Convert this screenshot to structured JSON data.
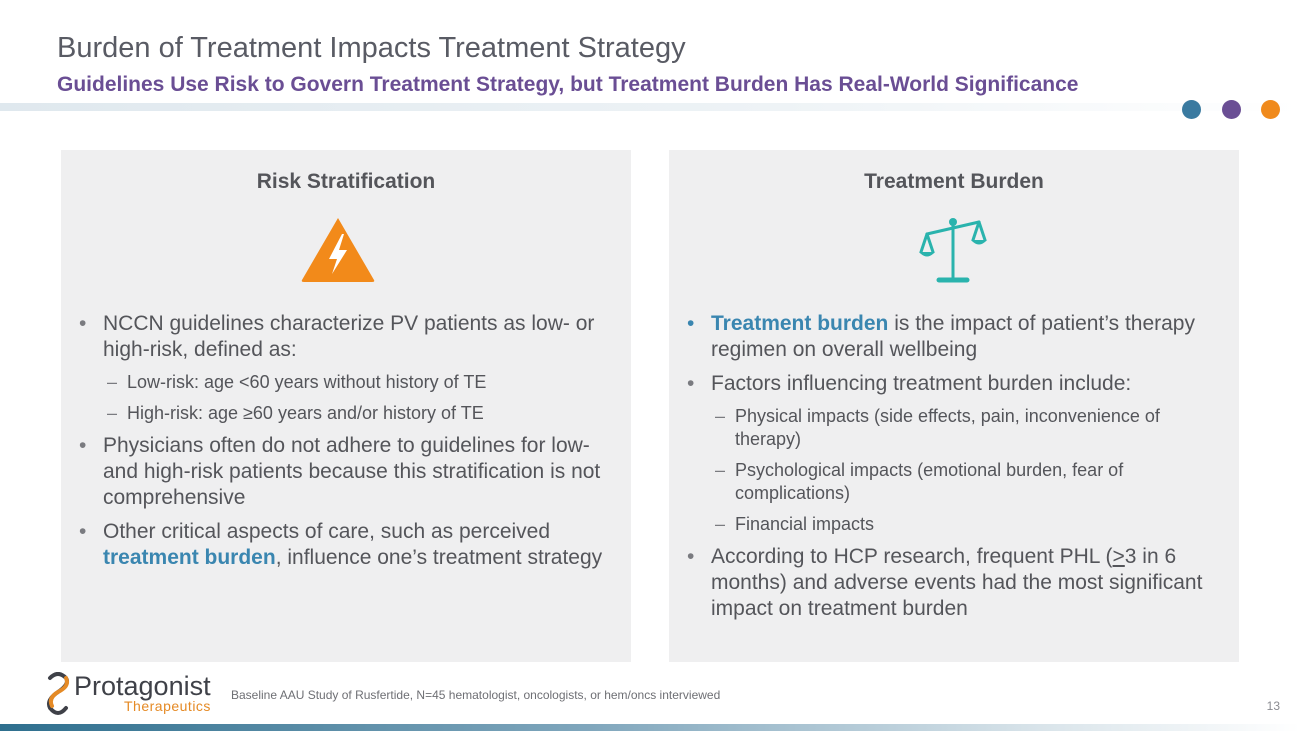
{
  "slide": {
    "title": "Burden of Treatment Impacts Treatment Strategy",
    "subtitle": "Guidelines Use Risk to Govern Treatment Strategy, but Treatment Burden Has Real-World Significance",
    "accent_dots": [
      {
        "name": "teal-dot",
        "color": "#3a7aa0"
      },
      {
        "name": "purple-dot",
        "color": "#6a4e94"
      },
      {
        "name": "orange-dot",
        "color": "#f08a1c"
      }
    ]
  },
  "left_panel": {
    "title": "Risk Stratification",
    "icon": "lightning-warning-icon",
    "icon_color": "#f28a1a",
    "b1_text": "NCCN guidelines characterize PV patients as low- or high-risk, defined as:",
    "b1_sub1": "Low-risk: age <60 years without history of TE",
    "b1_sub2": "High-risk: age ≥60 years and/or history of TE",
    "b2_text": "Physicians often do not adhere to guidelines for low- and high-risk patients because this stratification is not comprehensive",
    "b3_pre": "Other critical aspects of care, such as perceived ",
    "b3_highlight": "treatment burden",
    "b3_post": ", influence one’s treatment strategy"
  },
  "right_panel": {
    "title": "Treatment Burden",
    "icon": "balance-scale-icon",
    "icon_color": "#2ab3ad",
    "b1_highlight": "Treatment burden",
    "b1_post": " is the impact of patient’s therapy regimen on overall wellbeing",
    "b2_text": "Factors influencing treatment burden include:",
    "b2_sub1": "Physical impacts (side effects, pain, inconvenience of therapy)",
    "b2_sub2": "Psychological impacts (emotional burden, fear of complications)",
    "b2_sub3": "Financial impacts",
    "b3_pre": "According to HCP research, frequent PHL (",
    "b3_ge": ">",
    "b3_post": "3 in 6 months) and adverse events had the most significant impact on treatment burden"
  },
  "footer": {
    "logo_name": "Protagonist",
    "logo_sub": "Therapeutics",
    "footnote": "Baseline AAU Study of Rusfertide, N=45 hematologist, oncologists, or hem/oncs interviewed",
    "page_number": "13"
  }
}
